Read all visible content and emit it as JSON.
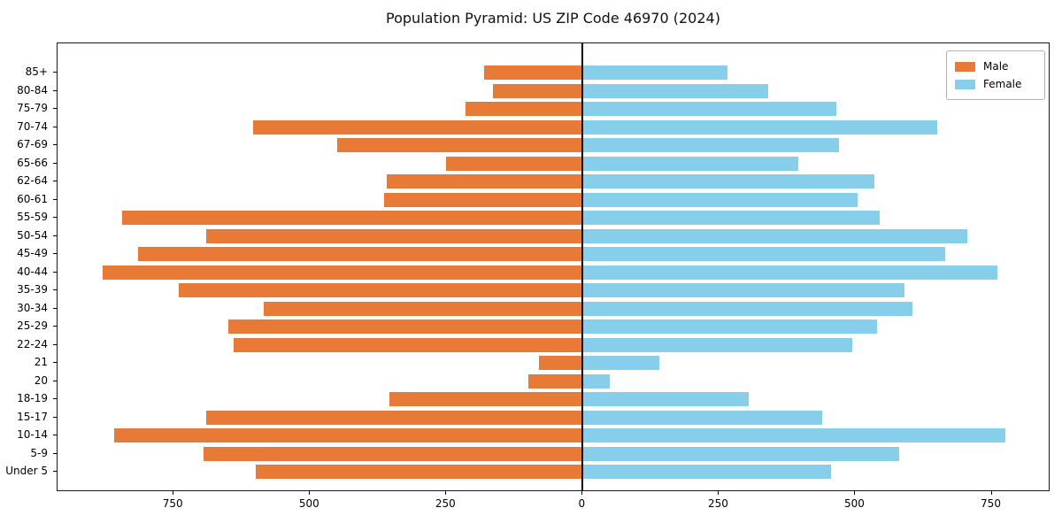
{
  "chart_data": {
    "type": "bar",
    "variant": "population-pyramid-horizontal",
    "title": "Population Pyramid: US ZIP Code 46970 (2024)",
    "categories_top_to_bottom": [
      "85+",
      "80-84",
      "75-79",
      "70-74",
      "67-69",
      "65-66",
      "62-64",
      "60-61",
      "55-59",
      "50-54",
      "45-49",
      "40-44",
      "35-39",
      "30-34",
      "25-29",
      "22-24",
      "21",
      "20",
      "18-19",
      "15-17",
      "10-14",
      "5-9",
      "Under 5"
    ],
    "series": [
      {
        "name": "Male",
        "side": "left",
        "color": "#e87a38",
        "values": [
          180,
          165,
          215,
          605,
          450,
          250,
          360,
          365,
          845,
          690,
          815,
          880,
          740,
          585,
          650,
          640,
          80,
          100,
          355,
          690,
          860,
          695,
          600
        ]
      },
      {
        "name": "Female",
        "side": "right",
        "color": "#87ceeb",
        "values": [
          265,
          340,
          465,
          650,
          470,
          395,
          535,
          505,
          545,
          705,
          665,
          760,
          590,
          605,
          540,
          495,
          140,
          50,
          305,
          440,
          775,
          580,
          455
        ]
      }
    ],
    "x_axis": {
      "tick_values": [
        -750,
        -500,
        -250,
        0,
        250,
        500,
        750
      ],
      "tick_labels": [
        "750",
        "500",
        "250",
        "0",
        "250",
        "500",
        "750"
      ],
      "xlim_left": -963,
      "xlim_right": 858
    },
    "y_axis": {
      "label": "",
      "categories_are_age_groups": true
    },
    "legend": {
      "position": "upper-right",
      "entries": [
        "Male",
        "Female"
      ]
    },
    "grid": false,
    "zero_line": true
  },
  "colors": {
    "male": "#e87a38",
    "female": "#87ceeb",
    "spine": "#1a1a1a",
    "background": "#ffffff"
  }
}
